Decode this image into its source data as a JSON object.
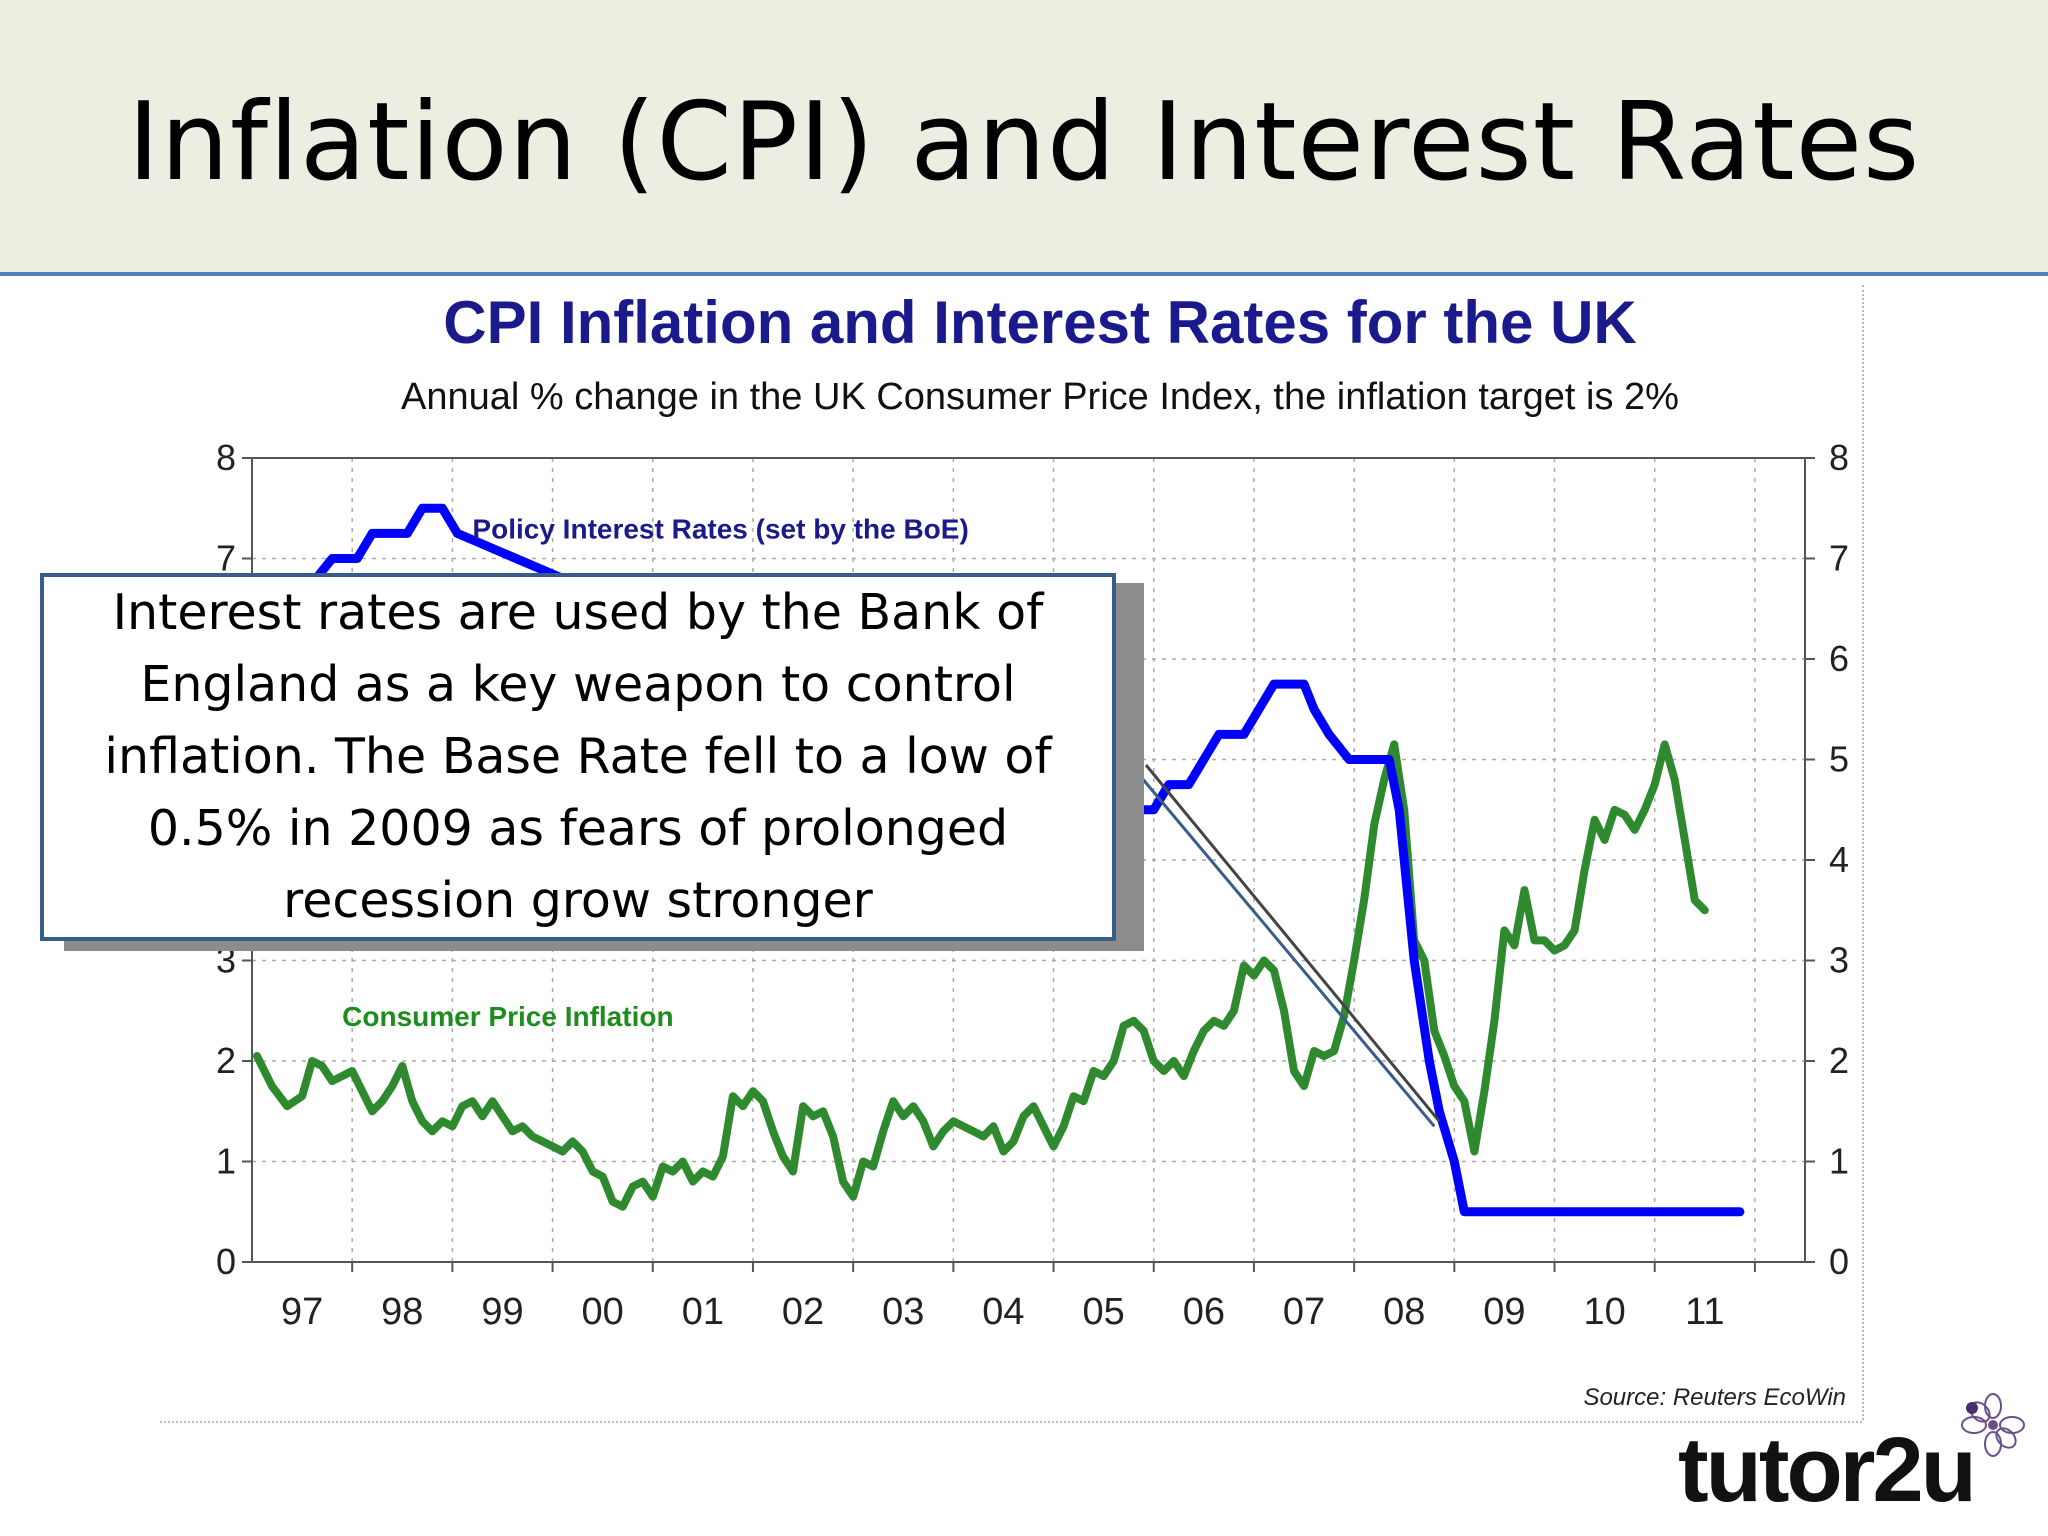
{
  "slide": {
    "title": "Inflation (CPI) and Interest Rates"
  },
  "callout": {
    "text": "Interest rates are used by the Bank of England as a key weapon to control inflation.  The Base Rate fell to a low of 0.5% in 2009 as fears of prolonged recession grow stronger"
  },
  "source": "Source: Reuters EcoWin",
  "logo": {
    "text": "tutor2u"
  },
  "colors": {
    "header_bg": "#ebeee0",
    "header_rule": "#4f81bd",
    "chart_title": "#1a1a8c",
    "policy_rate_line": "#0000ff",
    "cpi_line": "#2f8a2f",
    "policy_label": "#1a1a8c",
    "cpi_label": "#1e8c1e",
    "callout_border": "#385d8a"
  },
  "chart_data": {
    "type": "line",
    "title": "CPI Inflation and Interest Rates for the UK",
    "subtitle": "Annual % change in the UK Consumer Price Index, the inflation target is 2%",
    "xlim": [
      1996.5,
      2012.0
    ],
    "ylim": [
      0,
      8
    ],
    "y_ticks": [
      0,
      1,
      2,
      3,
      4,
      5,
      6,
      7,
      8
    ],
    "x_ticks": [
      {
        "label": "97",
        "value": 1997
      },
      {
        "label": "98",
        "value": 1998
      },
      {
        "label": "99",
        "value": 1999
      },
      {
        "label": "00",
        "value": 2000
      },
      {
        "label": "01",
        "value": 2001
      },
      {
        "label": "02",
        "value": 2002
      },
      {
        "label": "03",
        "value": 2003
      },
      {
        "label": "04",
        "value": 2004
      },
      {
        "label": "05",
        "value": 2005
      },
      {
        "label": "06",
        "value": 2006
      },
      {
        "label": "07",
        "value": 2007
      },
      {
        "label": "08",
        "value": 2008
      },
      {
        "label": "09",
        "value": 2009
      },
      {
        "label": "10",
        "value": 2010
      },
      {
        "label": "11",
        "value": 2011
      }
    ],
    "grid": true,
    "secondary_y_axis": "mirrored",
    "series": [
      {
        "name": "Policy Interest Rates (set by the BoE)",
        "points": [
          [
            1996.5,
            6.0
          ],
          [
            1996.75,
            6.0
          ],
          [
            1996.85,
            6.25
          ],
          [
            1997.0,
            6.5
          ],
          [
            1997.1,
            6.75
          ],
          [
            1997.3,
            7.0
          ],
          [
            1997.55,
            7.0
          ],
          [
            1997.7,
            7.25
          ],
          [
            1998.05,
            7.25
          ],
          [
            1998.2,
            7.5
          ],
          [
            1998.4,
            7.5
          ],
          [
            1998.55,
            7.25
          ],
          [
            2005.0,
            4.5
          ],
          [
            2005.5,
            4.5
          ],
          [
            2005.65,
            4.75
          ],
          [
            2005.85,
            4.75
          ],
          [
            2006.0,
            5.0
          ],
          [
            2006.15,
            5.25
          ],
          [
            2006.4,
            5.25
          ],
          [
            2006.55,
            5.5
          ],
          [
            2006.7,
            5.75
          ],
          [
            2007.0,
            5.75
          ],
          [
            2007.1,
            5.5
          ],
          [
            2007.25,
            5.25
          ],
          [
            2007.45,
            5.0
          ],
          [
            2007.85,
            5.0
          ],
          [
            2007.95,
            4.5
          ],
          [
            2008.1,
            3.0
          ],
          [
            2008.25,
            2.0
          ],
          [
            2008.35,
            1.5
          ],
          [
            2008.5,
            1.0
          ],
          [
            2008.6,
            0.5
          ],
          [
            2011.35,
            0.5
          ]
        ]
      },
      {
        "name": "Consumer Price Inflation",
        "points": [
          [
            1996.55,
            2.05
          ],
          [
            1996.7,
            1.75
          ],
          [
            1996.85,
            1.55
          ],
          [
            1997.0,
            1.65
          ],
          [
            1997.1,
            2.0
          ],
          [
            1997.2,
            1.95
          ],
          [
            1997.3,
            1.8
          ],
          [
            1997.4,
            1.85
          ],
          [
            1997.5,
            1.9
          ],
          [
            1997.6,
            1.7
          ],
          [
            1997.7,
            1.5
          ],
          [
            1997.8,
            1.6
          ],
          [
            1997.9,
            1.75
          ],
          [
            1998.0,
            1.95
          ],
          [
            1998.1,
            1.6
          ],
          [
            1998.2,
            1.4
          ],
          [
            1998.3,
            1.3
          ],
          [
            1998.4,
            1.4
          ],
          [
            1998.5,
            1.35
          ],
          [
            1998.6,
            1.55
          ],
          [
            1998.7,
            1.6
          ],
          [
            1998.8,
            1.45
          ],
          [
            1998.9,
            1.6
          ],
          [
            1999.0,
            1.45
          ],
          [
            1999.1,
            1.3
          ],
          [
            1999.2,
            1.35
          ],
          [
            1999.3,
            1.25
          ],
          [
            1999.4,
            1.2
          ],
          [
            1999.5,
            1.15
          ],
          [
            1999.6,
            1.1
          ],
          [
            1999.7,
            1.2
          ],
          [
            1999.8,
            1.1
          ],
          [
            1999.9,
            0.9
          ],
          [
            2000.0,
            0.85
          ],
          [
            2000.1,
            0.6
          ],
          [
            2000.2,
            0.55
          ],
          [
            2000.3,
            0.75
          ],
          [
            2000.4,
            0.8
          ],
          [
            2000.5,
            0.65
          ],
          [
            2000.6,
            0.95
          ],
          [
            2000.7,
            0.9
          ],
          [
            2000.8,
            1.0
          ],
          [
            2000.9,
            0.8
          ],
          [
            2001.0,
            0.9
          ],
          [
            2001.1,
            0.85
          ],
          [
            2001.2,
            1.05
          ],
          [
            2001.3,
            1.65
          ],
          [
            2001.4,
            1.55
          ],
          [
            2001.5,
            1.7
          ],
          [
            2001.6,
            1.6
          ],
          [
            2001.7,
            1.3
          ],
          [
            2001.8,
            1.05
          ],
          [
            2001.9,
            0.9
          ],
          [
            2002.0,
            1.55
          ],
          [
            2002.1,
            1.45
          ],
          [
            2002.2,
            1.5
          ],
          [
            2002.3,
            1.25
          ],
          [
            2002.4,
            0.8
          ],
          [
            2002.5,
            0.65
          ],
          [
            2002.6,
            1.0
          ],
          [
            2002.7,
            0.95
          ],
          [
            2002.8,
            1.3
          ],
          [
            2002.9,
            1.6
          ],
          [
            2003.0,
            1.45
          ],
          [
            2003.1,
            1.55
          ],
          [
            2003.2,
            1.4
          ],
          [
            2003.3,
            1.15
          ],
          [
            2003.4,
            1.3
          ],
          [
            2003.5,
            1.4
          ],
          [
            2003.6,
            1.35
          ],
          [
            2003.7,
            1.3
          ],
          [
            2003.8,
            1.25
          ],
          [
            2003.9,
            1.35
          ],
          [
            2004.0,
            1.1
          ],
          [
            2004.1,
            1.2
          ],
          [
            2004.2,
            1.45
          ],
          [
            2004.3,
            1.55
          ],
          [
            2004.4,
            1.35
          ],
          [
            2004.5,
            1.15
          ],
          [
            2004.6,
            1.35
          ],
          [
            2004.7,
            1.65
          ],
          [
            2004.8,
            1.6
          ],
          [
            2004.9,
            1.9
          ],
          [
            2005.0,
            1.85
          ],
          [
            2005.1,
            2.0
          ],
          [
            2005.2,
            2.35
          ],
          [
            2005.3,
            2.4
          ],
          [
            2005.4,
            2.3
          ],
          [
            2005.5,
            2.0
          ],
          [
            2005.6,
            1.9
          ],
          [
            2005.7,
            2.0
          ],
          [
            2005.8,
            1.85
          ],
          [
            2005.9,
            2.1
          ],
          [
            2006.0,
            2.3
          ],
          [
            2006.1,
            2.4
          ],
          [
            2006.2,
            2.35
          ],
          [
            2006.3,
            2.5
          ],
          [
            2006.4,
            2.95
          ],
          [
            2006.5,
            2.85
          ],
          [
            2006.6,
            3.0
          ],
          [
            2006.7,
            2.9
          ],
          [
            2006.8,
            2.5
          ],
          [
            2006.9,
            1.9
          ],
          [
            2007.0,
            1.75
          ],
          [
            2007.1,
            2.1
          ],
          [
            2007.2,
            2.05
          ],
          [
            2007.3,
            2.1
          ],
          [
            2007.4,
            2.45
          ],
          [
            2007.5,
            3.0
          ],
          [
            2007.6,
            3.6
          ],
          [
            2007.7,
            4.35
          ],
          [
            2007.8,
            4.8
          ],
          [
            2007.9,
            5.15
          ],
          [
            2008.0,
            4.5
          ],
          [
            2008.1,
            3.2
          ],
          [
            2008.2,
            3.0
          ],
          [
            2008.3,
            2.3
          ],
          [
            2008.4,
            2.05
          ],
          [
            2008.5,
            1.75
          ],
          [
            2008.6,
            1.6
          ],
          [
            2008.7,
            1.1
          ],
          [
            2008.8,
            1.7
          ],
          [
            2008.9,
            2.4
          ],
          [
            2009.0,
            3.3
          ],
          [
            2009.1,
            3.15
          ],
          [
            2009.2,
            3.7
          ],
          [
            2009.3,
            3.2
          ],
          [
            2009.4,
            3.2
          ],
          [
            2009.5,
            3.1
          ],
          [
            2009.6,
            3.15
          ],
          [
            2009.7,
            3.3
          ],
          [
            2009.8,
            3.9
          ],
          [
            2009.9,
            4.4
          ],
          [
            2010.0,
            4.2
          ],
          [
            2010.1,
            4.5
          ],
          [
            2010.2,
            4.45
          ],
          [
            2010.3,
            4.3
          ],
          [
            2010.4,
            4.5
          ],
          [
            2010.5,
            4.75
          ],
          [
            2010.6,
            5.15
          ],
          [
            2010.7,
            4.8
          ],
          [
            2010.8,
            4.2
          ],
          [
            2010.9,
            3.6
          ],
          [
            2011.0,
            3.5
          ]
        ]
      }
    ],
    "annotations": [
      {
        "text": "Policy Interest Rates (set by the BoE)",
        "series": 0
      },
      {
        "text": "Consumer Price Inflation",
        "series": 1
      }
    ]
  }
}
